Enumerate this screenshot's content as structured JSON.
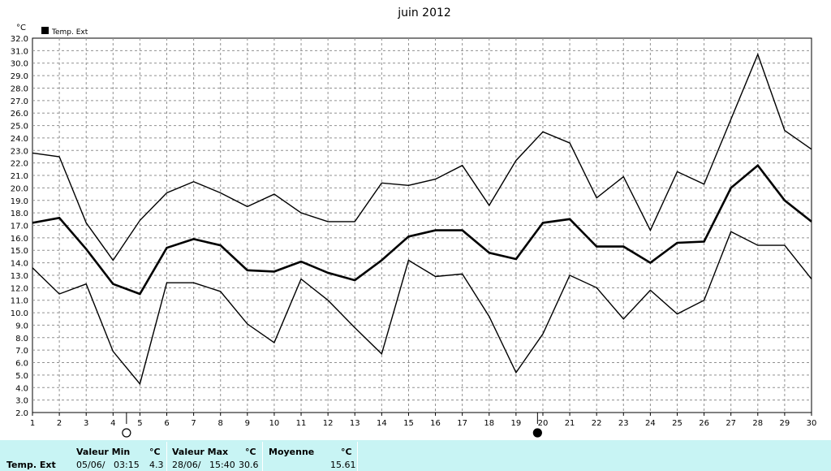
{
  "chart_data": {
    "type": "line",
    "title": "juin 2012",
    "ylabel": "°C",
    "legend": {
      "label": "Temp. Ext",
      "position": "top-left"
    },
    "x": [
      1,
      2,
      3,
      4,
      5,
      6,
      7,
      8,
      9,
      10,
      11,
      12,
      13,
      14,
      15,
      16,
      17,
      18,
      19,
      20,
      21,
      22,
      23,
      24,
      25,
      26,
      27,
      28,
      29,
      30
    ],
    "ylim": [
      2.0,
      32.0
    ],
    "yticks": [
      "2.0",
      "3.0",
      "4.0",
      "5.0",
      "6.0",
      "7.0",
      "8.0",
      "9.0",
      "10.0",
      "11.0",
      "12.0",
      "13.0",
      "14.0",
      "15.0",
      "16.0",
      "17.0",
      "18.0",
      "19.0",
      "20.0",
      "21.0",
      "22.0",
      "23.0",
      "24.0",
      "25.0",
      "26.0",
      "27.0",
      "28.0",
      "29.0",
      "30.0",
      "31.0",
      "32.0"
    ],
    "grid": true,
    "line_color": "#000000",
    "series": [
      {
        "values": [
          22.8,
          22.5,
          17.2,
          14.2,
          17.4,
          19.6,
          20.5,
          19.6,
          18.5,
          19.5,
          18.0,
          17.3,
          17.3,
          20.4,
          20.2,
          20.7,
          21.8,
          18.6,
          22.2,
          24.5,
          23.6,
          19.2,
          20.9,
          16.6,
          21.3,
          20.3,
          25.5,
          30.7,
          24.6,
          23.1
        ]
      },
      {
        "values": [
          17.2,
          17.6,
          15.1,
          12.3,
          11.5,
          15.2,
          15.9,
          15.4,
          13.4,
          13.3,
          14.1,
          13.2,
          12.6,
          14.2,
          16.1,
          16.6,
          16.6,
          14.8,
          14.3,
          17.2,
          17.5,
          15.3,
          15.3,
          14.0,
          15.6,
          15.7,
          20.0,
          21.8,
          19.0,
          17.3
        ]
      },
      {
        "values": [
          13.6,
          11.5,
          12.3,
          6.9,
          4.3,
          12.4,
          12.4,
          11.7,
          9.1,
          7.6,
          12.7,
          11.0,
          8.8,
          6.7,
          14.2,
          12.9,
          13.1,
          9.7,
          5.2,
          8.3,
          13.0,
          12.0,
          9.5,
          11.8,
          9.9,
          11.0,
          16.5,
          15.4,
          15.4,
          12.7
        ]
      }
    ],
    "moon_phases": [
      {
        "day": 4.5,
        "phase": "full-moon"
      },
      {
        "day": 19.8,
        "phase": "new-moon"
      }
    ]
  },
  "footer": {
    "row_label": "Temp. Ext",
    "min": {
      "label": "Valeur Min",
      "unit": "°C",
      "date": "05/06/",
      "time": "03:15",
      "value": "4.3"
    },
    "max": {
      "label": "Valeur Max",
      "unit": "°C",
      "date": "28/06/",
      "time": "15:40",
      "value": "30.6"
    },
    "avg": {
      "label": "Moyenne",
      "unit": "°C",
      "value": "15.61"
    }
  }
}
